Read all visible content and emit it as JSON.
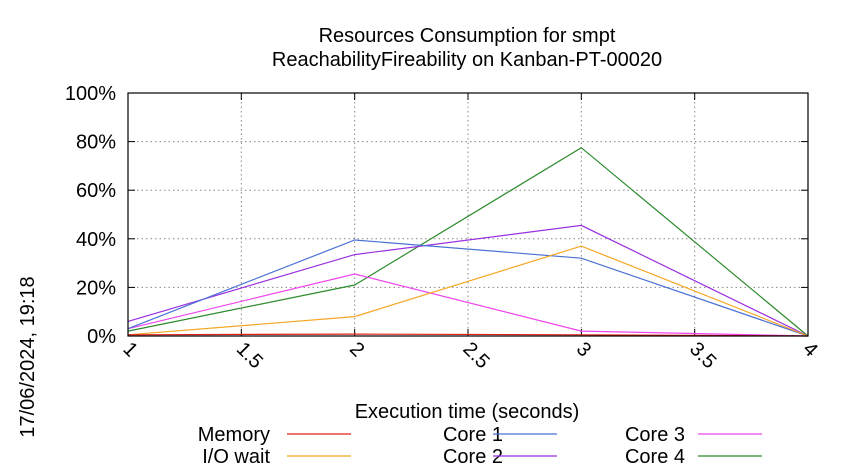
{
  "chart_data": {
    "type": "line",
    "title": "Resources Consumption for smpt",
    "subtitle": "ReachabilityFireability on Kanban-PT-00020",
    "xlabel": "Execution time (seconds)",
    "ylabel": "",
    "side_label": "17/06/2024, 19:18",
    "xlim": [
      1,
      4
    ],
    "ylim": [
      0,
      100
    ],
    "x_ticks": [
      1,
      1.5,
      2,
      2.5,
      3,
      3.5,
      4
    ],
    "x_tick_labels": [
      "1",
      "1.5",
      "2",
      "2.5",
      "3",
      "3.5",
      "4"
    ],
    "y_ticks": [
      0,
      20,
      40,
      60,
      80,
      100
    ],
    "y_tick_labels": [
      "0%",
      "20%",
      "40%",
      "60%",
      "80%",
      "100%"
    ],
    "grid": true,
    "legend_position": "bottom",
    "series": [
      {
        "name": "Memory",
        "color": "#e0201b",
        "x": [
          1,
          2,
          3,
          4
        ],
        "y": [
          0.5,
          0.8,
          0.5,
          0
        ]
      },
      {
        "name": "I/O wait",
        "color": "#f5a623",
        "x": [
          1,
          2,
          3,
          4
        ],
        "y": [
          0.5,
          8,
          37,
          0
        ]
      },
      {
        "name": "Core 1",
        "color": "#4a72d4",
        "x": [
          1,
          2,
          3,
          4
        ],
        "y": [
          3,
          39.5,
          32,
          0
        ]
      },
      {
        "name": "Core 2",
        "color": "#9b30e0",
        "x": [
          1,
          2,
          3,
          4
        ],
        "y": [
          6,
          33.5,
          45.5,
          0
        ]
      },
      {
        "name": "Core 3",
        "color": "#ee44ee",
        "x": [
          1,
          2,
          3,
          4
        ],
        "y": [
          3,
          25.5,
          2,
          0
        ]
      },
      {
        "name": "Core 4",
        "color": "#2e8b2e",
        "x": [
          1,
          2,
          3,
          4
        ],
        "y": [
          2,
          21,
          77.5,
          0
        ]
      }
    ]
  }
}
